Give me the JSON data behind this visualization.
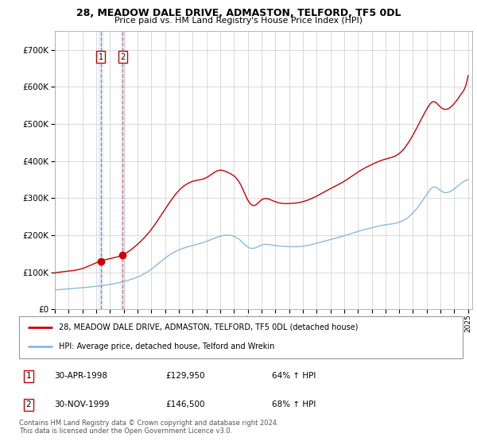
{
  "title": "28, MEADOW DALE DRIVE, ADMASTON, TELFORD, TF5 0DL",
  "subtitle": "Price paid vs. HM Land Registry's House Price Index (HPI)",
  "legend_line1": "28, MEADOW DALE DRIVE, ADMASTON, TELFORD, TF5 0DL (detached house)",
  "legend_line2": "HPI: Average price, detached house, Telford and Wrekin",
  "transaction1_date": "30-APR-1998",
  "transaction1_price": "£129,950",
  "transaction1_hpi": "64% ↑ HPI",
  "transaction2_date": "30-NOV-1999",
  "transaction2_price": "£146,500",
  "transaction2_hpi": "68% ↑ HPI",
  "footer": "Contains HM Land Registry data © Crown copyright and database right 2024.\nThis data is licensed under the Open Government Licence v3.0.",
  "price_color": "#cc0000",
  "hpi_color": "#88bbdd",
  "marker_color": "#cc0000",
  "vline_color": "#dd5555",
  "vband_color": "#ddeeff",
  "background_color": "#ffffff",
  "grid_color": "#cccccc",
  "ylim": [
    0,
    750000
  ],
  "yticks": [
    0,
    100000,
    200000,
    300000,
    400000,
    500000,
    600000,
    700000
  ],
  "transaction1_year": 1998.33,
  "transaction2_year": 1999.92,
  "transaction1_price_val": 129950,
  "transaction2_price_val": 146500
}
